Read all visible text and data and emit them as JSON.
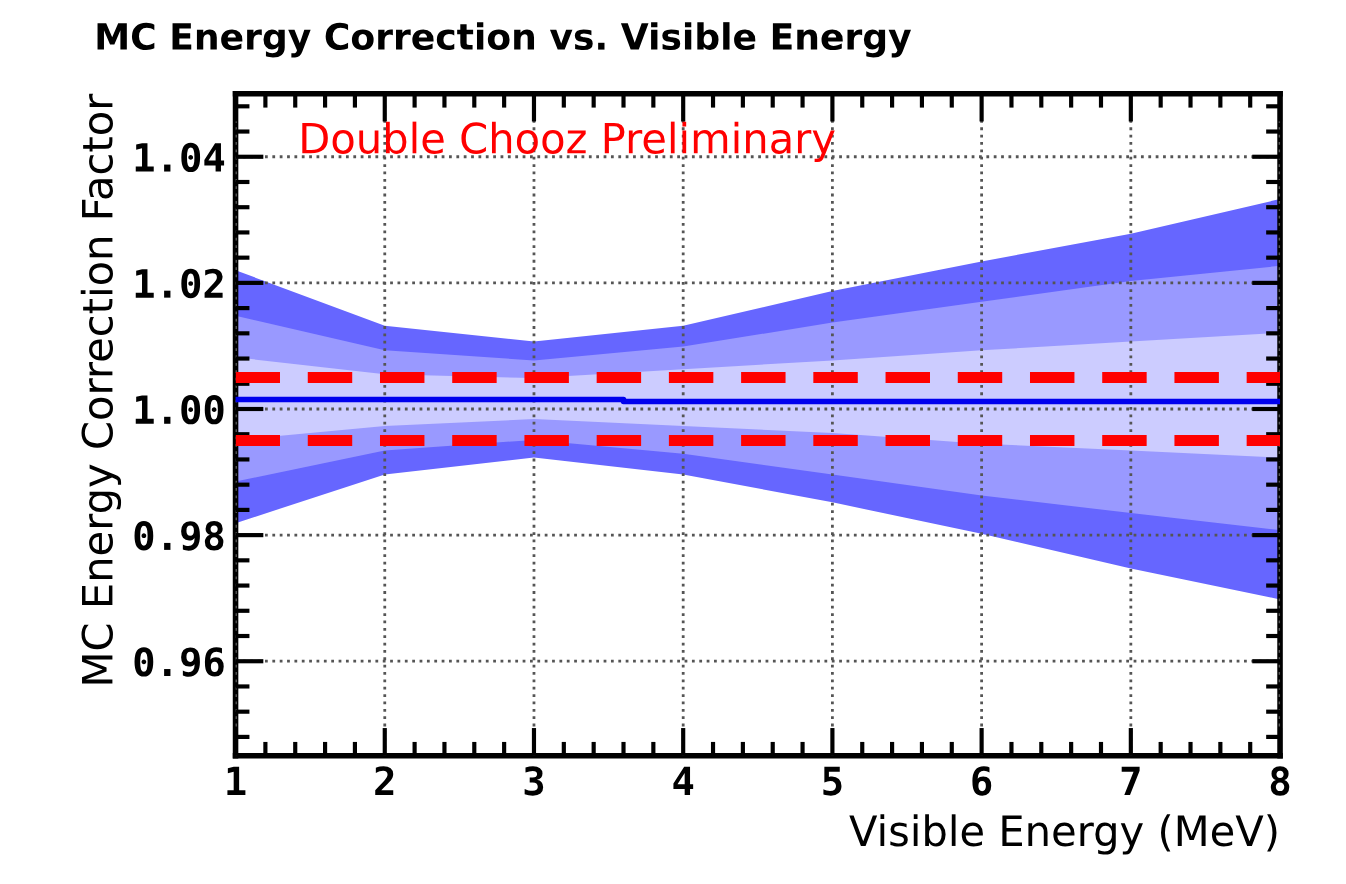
{
  "chart_data": {
    "type": "line",
    "title": "MC Energy Correction vs. Visible Energy",
    "xlabel": "Visible Energy (MeV)",
    "ylabel": "MC Energy Correction Factor",
    "annotations": [
      "Double Chooz Preliminary"
    ],
    "x": [
      1,
      2,
      3,
      4,
      5,
      6,
      7,
      8
    ],
    "series": [
      {
        "type": "area",
        "color": "#6666ff",
        "values": [
          null,
          null,
          null,
          null,
          null,
          null,
          null,
          null
        ],
        "lower": [
          0.9819,
          0.9896,
          0.9923,
          0.9896,
          0.9852,
          0.9802,
          0.9747,
          0.9698
        ],
        "upper": [
          1.022,
          1.0132,
          1.0107,
          1.0132,
          1.0187,
          1.0234,
          1.0278,
          1.0333
        ]
      },
      {
        "type": "area",
        "color": "#9999ff",
        "values": [
          null,
          null,
          null,
          null,
          null,
          null,
          null,
          null
        ],
        "lower": [
          0.9885,
          0.9934,
          0.9951,
          0.9929,
          0.9896,
          0.9863,
          0.9835,
          0.9808
        ],
        "upper": [
          1.0148,
          1.0093,
          1.0077,
          1.0099,
          1.0137,
          1.017,
          1.0203,
          1.0227
        ]
      },
      {
        "type": "area",
        "color": "#ccccff",
        "values": [
          null,
          null,
          null,
          null,
          null,
          null,
          null,
          null
        ],
        "lower": [
          0.9951,
          0.9973,
          0.9984,
          0.9973,
          0.9962,
          0.9945,
          0.9934,
          0.9923
        ],
        "upper": [
          1.0082,
          1.0055,
          1.0049,
          1.0063,
          1.0077,
          1.0093,
          1.0107,
          1.0121
        ]
      },
      {
        "color": "#0000ee",
        "x": [
          1,
          3.6,
          3.6,
          8
        ],
        "values": [
          1.0015,
          1.0015,
          1.0012,
          1.0012
        ]
      }
    ],
    "ref_lines": [
      {
        "axis": "y",
        "value": 1.005,
        "color": "#ff0000",
        "line_style": "dashed"
      },
      {
        "axis": "y",
        "value": 0.995,
        "color": "#ff0000",
        "line_style": "dashed"
      }
    ],
    "xlim": [
      1,
      8
    ],
    "ylim": [
      0.945,
      1.05
    ],
    "xticks": [
      1,
      2,
      3,
      4,
      5,
      6,
      7,
      8
    ],
    "yticks": [
      0.96,
      0.98,
      {
        "value": 1,
        "label": "1.00"
      },
      1.02,
      1.04
    ],
    "grid": true,
    "legend": false,
    "marker": "none",
    "line_style": "solid"
  }
}
